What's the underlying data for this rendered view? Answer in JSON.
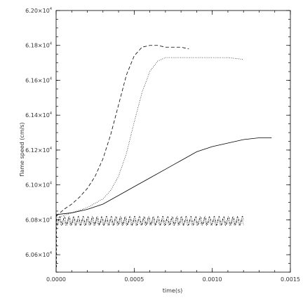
{
  "chart_data": {
    "type": "line",
    "title": "",
    "xlabel": "time(s)",
    "ylabel": "flame speed (cm/s)",
    "xlim": [
      0.0,
      0.0015
    ],
    "ylim": [
      6.05,
      6.2
    ],
    "x_ticks": [
      0.0,
      0.0005,
      0.001,
      0.0015
    ],
    "x_tick_labels": [
      "0.0000",
      "0.0005",
      "0.0010",
      "0.0015"
    ],
    "y_ticks": [
      6.06,
      6.08,
      6.1,
      6.12,
      6.14,
      6.16,
      6.18,
      6.2
    ],
    "y_tick_labels": [
      {
        "mantissa": "6.06×10",
        "exp": "4"
      },
      {
        "mantissa": "6.08×10",
        "exp": "4"
      },
      {
        "mantissa": "6.10×10",
        "exp": "4"
      },
      {
        "mantissa": "6.12×10",
        "exp": "4"
      },
      {
        "mantissa": "6.14×10",
        "exp": "4"
      },
      {
        "mantissa": "6.16×10",
        "exp": "4"
      },
      {
        "mantissa": "6.18×10",
        "exp": "4"
      },
      {
        "mantissa": "6.20×10",
        "exp": "4"
      }
    ],
    "y_unit_note": "values in units of 10^4 cm/s",
    "grid": false,
    "legend": "none",
    "series": [
      {
        "style": "dashed",
        "x": [
          0.0,
          5e-05,
          0.0001,
          0.00015,
          0.0002,
          0.00025,
          0.0003,
          0.00035,
          0.0004,
          0.00045,
          0.0005,
          0.00055,
          0.0006,
          0.00065,
          0.0007,
          0.00075,
          0.0008,
          0.00085
        ],
        "y": [
          6.082,
          6.086,
          6.089,
          6.093,
          6.098,
          6.105,
          6.115,
          6.129,
          6.146,
          6.163,
          6.174,
          6.179,
          6.18,
          6.18,
          6.179,
          6.179,
          6.179,
          6.178
        ]
      },
      {
        "style": "dotted",
        "x": [
          0.0,
          0.0001,
          0.0002,
          0.0003,
          0.00035,
          0.0004,
          0.00045,
          0.0005,
          0.00055,
          0.0006,
          0.00065,
          0.0007,
          0.0008,
          0.0009,
          0.001,
          0.0011,
          0.0012
        ],
        "y": [
          6.081,
          6.084,
          6.087,
          6.092,
          6.097,
          6.105,
          6.118,
          6.136,
          6.153,
          6.165,
          6.171,
          6.173,
          6.173,
          6.173,
          6.173,
          6.173,
          6.172
        ]
      },
      {
        "style": "solid",
        "x": [
          0.0,
          0.0001,
          0.0002,
          0.0003,
          0.0004,
          0.0005,
          0.0006,
          0.0007,
          0.0008,
          0.0009,
          0.001,
          0.0011,
          0.0012,
          0.0013,
          0.00138
        ],
        "y": [
          6.083,
          6.084,
          6.086,
          6.089,
          6.094,
          6.099,
          6.104,
          6.109,
          6.114,
          6.119,
          6.122,
          6.124,
          6.126,
          6.127,
          6.127
        ]
      },
      {
        "style": "dash-dot",
        "x_start": 0.0,
        "x_end": 0.0012,
        "oscillation_period": 3e-05,
        "center": 6.0795,
        "amplitude": 0.0025
      },
      {
        "style": "dotted-oscillating",
        "x_start": 0.0,
        "x_end": 0.0012,
        "oscillation_period": 3e-05,
        "center": 6.0785,
        "amplitude": 0.0018
      }
    ]
  }
}
